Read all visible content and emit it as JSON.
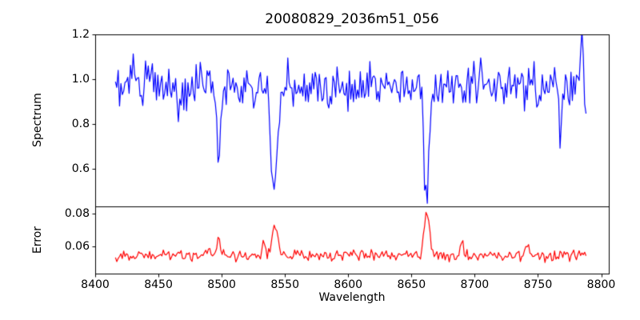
{
  "figure": {
    "background": "#ffffff",
    "spine_color": "#000000",
    "text_color": "#000000"
  },
  "chart_data": {
    "type": "line",
    "title": "20080829_2036m51_056",
    "xlabel": "Wavelength",
    "xlim": [
      8400,
      8806
    ],
    "xticks": [
      8400,
      8450,
      8500,
      8550,
      8600,
      8650,
      8700,
      8750,
      8800
    ],
    "x_data_range": [
      8416,
      8788
    ],
    "n_points": 345,
    "noise_seed": 20080829,
    "noise_clip_sigma": 2.6,
    "grid": false,
    "legend": "none",
    "panels": [
      {
        "name": "spectrum",
        "ylabel": "Spectrum",
        "line_color": "#0000ff",
        "ylim": [
          0.43,
          1.2
        ],
        "yticks": [
          0.6,
          0.8,
          1.0,
          1.2
        ],
        "ytick_labels": [
          "0.6",
          "0.8",
          "1.0",
          "1.2"
        ],
        "baseline": 0.97,
        "noise_std": 0.048,
        "features": [
          {
            "center": 8430,
            "amplitude": 0.17,
            "sigma": 0.7
          },
          {
            "center": 8466,
            "amplitude": -0.14,
            "sigma": 0.8
          },
          {
            "center": 8498,
            "amplitude": -0.32,
            "sigma": 1.5
          },
          {
            "center": 8542,
            "amplitude": -0.5,
            "sigma": 2.6
          },
          {
            "center": 8662,
            "amplitude": -0.51,
            "sigma": 2.2
          },
          {
            "center": 8768,
            "amplitude": -0.26,
            "sigma": 0.9
          },
          {
            "center": 8785,
            "amplitude": 0.17,
            "sigma": 0.8
          }
        ]
      },
      {
        "name": "error",
        "ylabel": "Error",
        "line_color": "#ff0000",
        "ylim": [
          0.0435,
          0.0845
        ],
        "yticks": [
          0.06,
          0.08
        ],
        "ytick_labels": [
          "0.06",
          "0.08"
        ],
        "baseline": 0.0545,
        "noise_std": 0.0017,
        "features": [
          {
            "center": 8490,
            "amplitude": 0.006,
            "sigma": 0.8
          },
          {
            "center": 8498,
            "amplitude": 0.0105,
            "sigma": 1.6
          },
          {
            "center": 8533,
            "amplitude": 0.008,
            "sigma": 0.9
          },
          {
            "center": 8542,
            "amplitude": 0.0205,
            "sigma": 2.2
          },
          {
            "center": 8662,
            "amplitude": 0.0275,
            "sigma": 2.0
          },
          {
            "center": 8690,
            "amplitude": 0.0085,
            "sigma": 1.2
          },
          {
            "center": 8742,
            "amplitude": 0.007,
            "sigma": 1.3
          }
        ]
      }
    ]
  }
}
